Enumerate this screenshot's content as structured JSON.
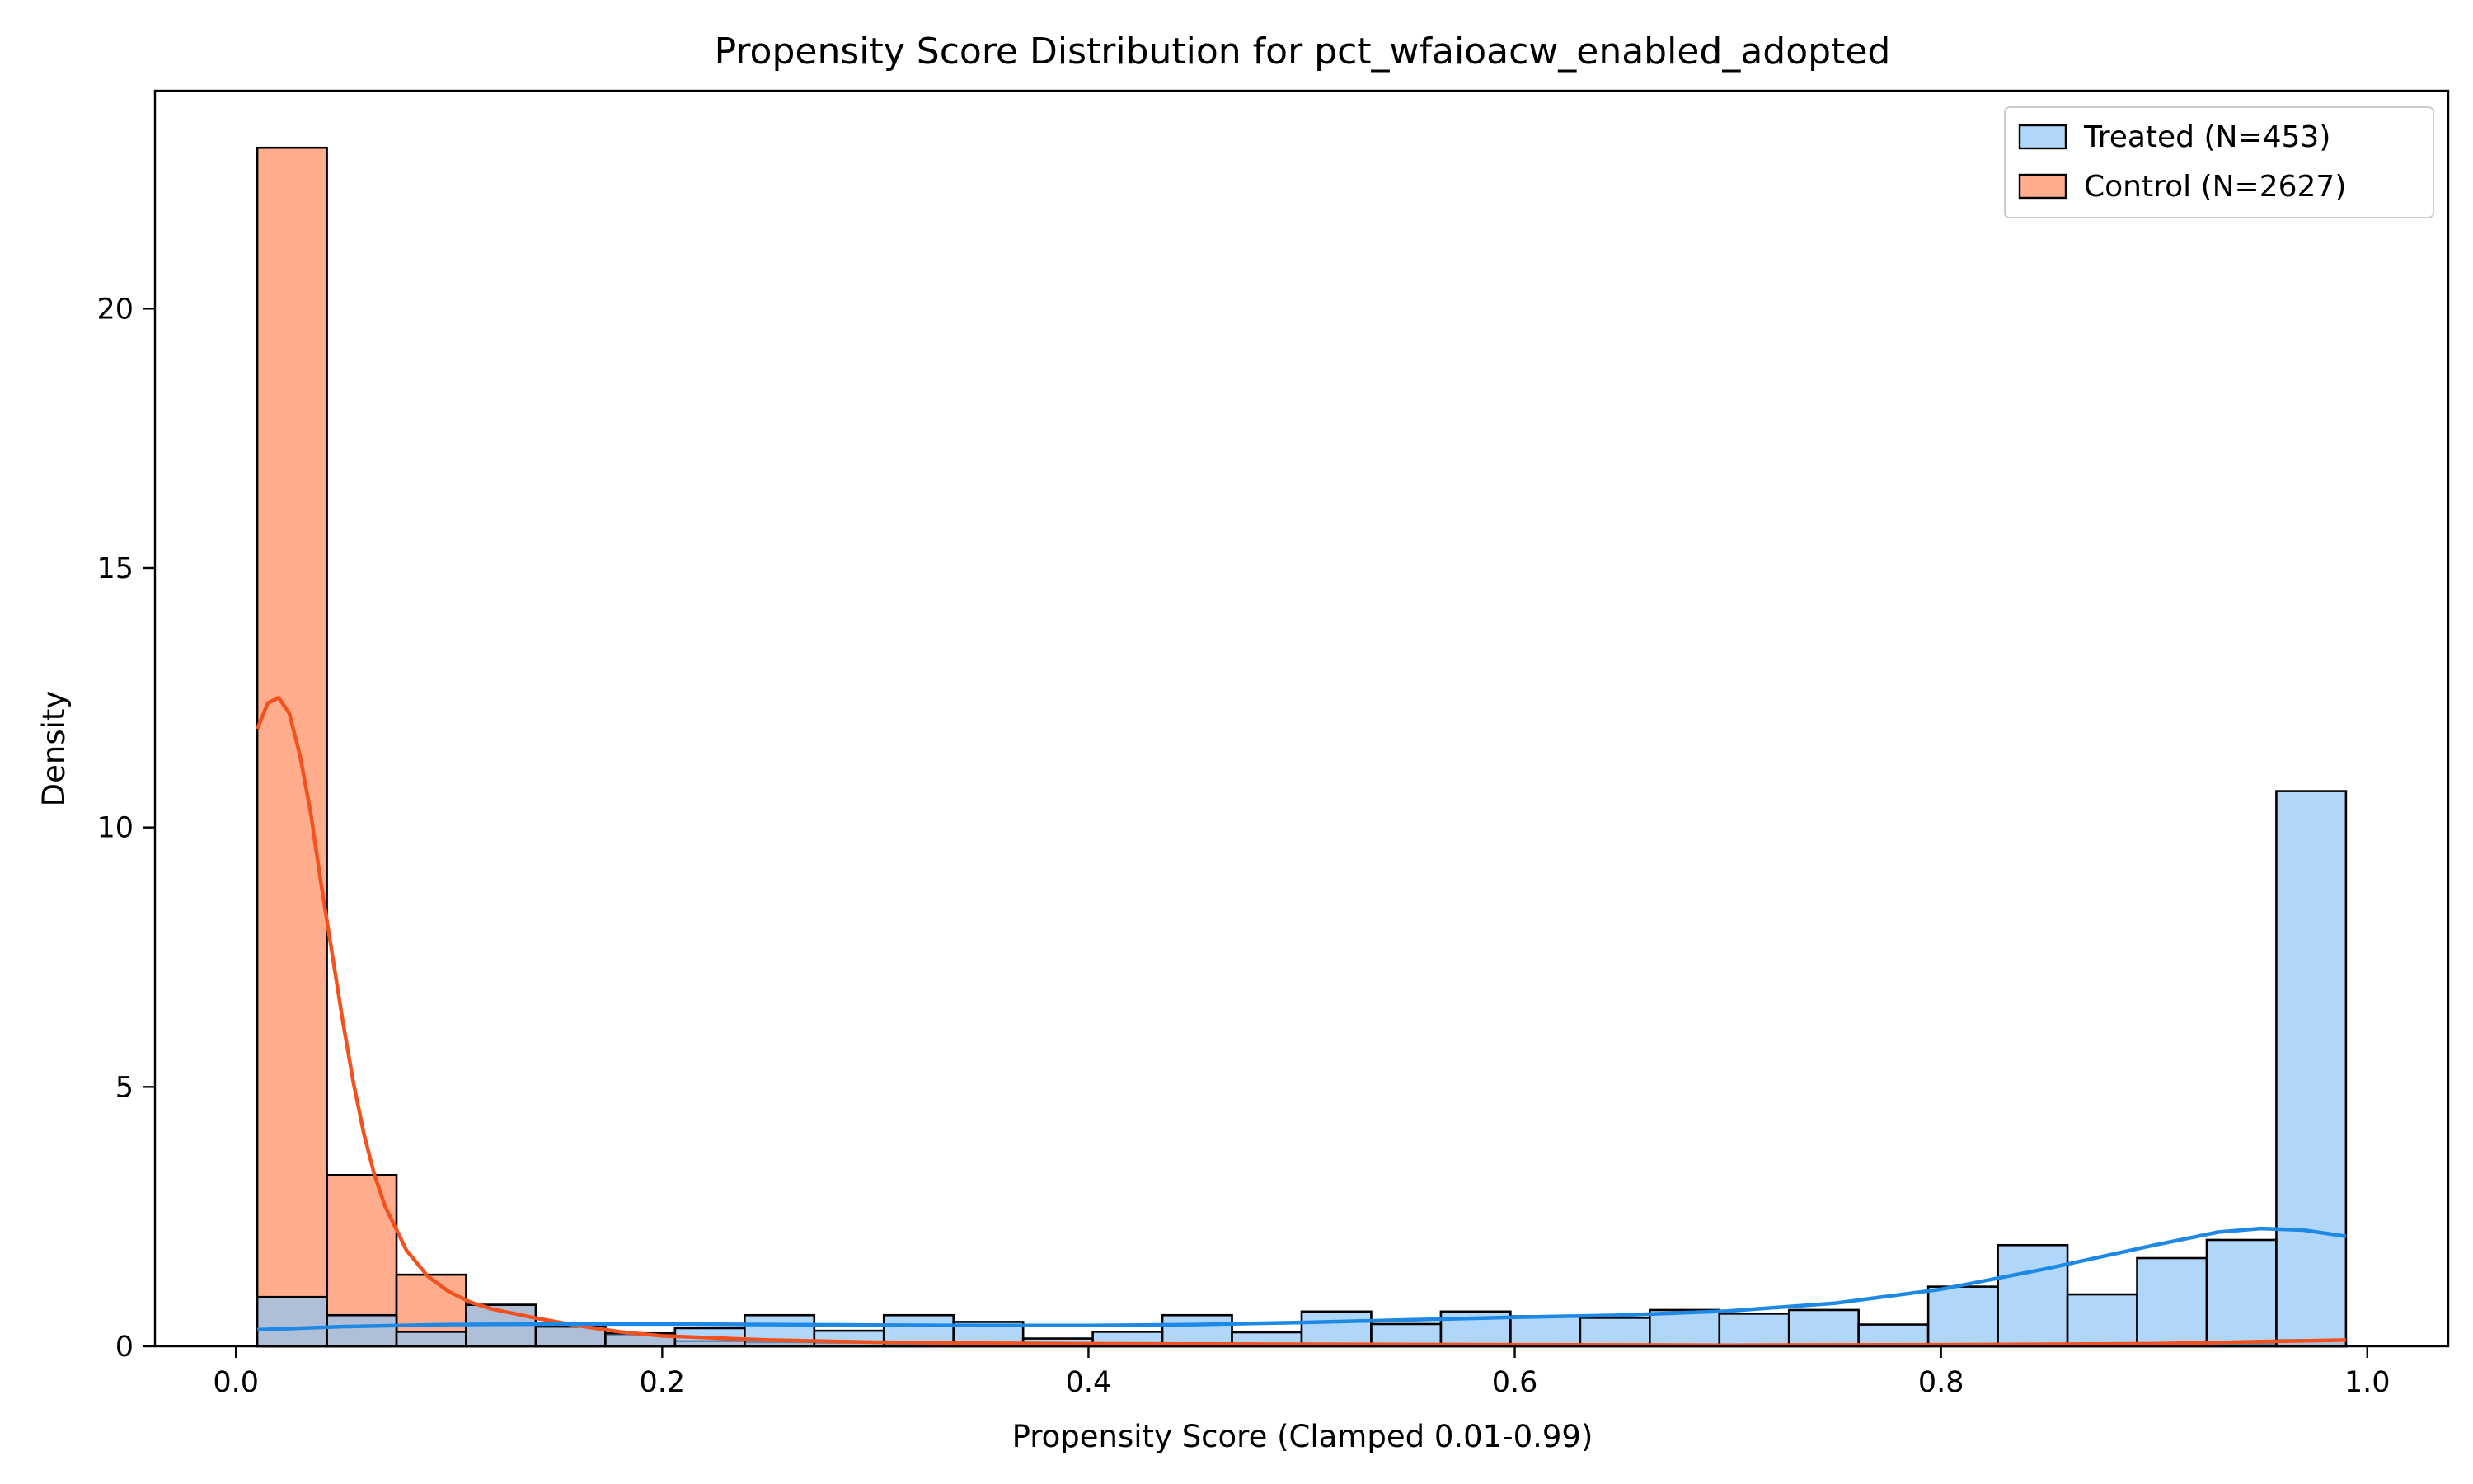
{
  "chart_data": {
    "type": "histogram",
    "title": "Propensity Score Distribution for pct_wfaioacw_enabled_adopted",
    "xlabel": "Propensity Score (Clamped 0.01-0.99)",
    "ylabel": "Density",
    "xlim": [
      -0.038,
      1.038
    ],
    "ylim": [
      0,
      24.2
    ],
    "x_ticks": [
      0.0,
      0.2,
      0.4,
      0.6,
      0.8,
      1.0
    ],
    "x_tick_labels": [
      "0.0",
      "0.2",
      "0.4",
      "0.6",
      "0.8",
      "1.0"
    ],
    "y_ticks": [
      0,
      5,
      10,
      15,
      20
    ],
    "y_tick_labels": [
      "0",
      "5",
      "10",
      "15",
      "20"
    ],
    "grid": false,
    "legend_position": "top-right",
    "bins": {
      "start": 0.01,
      "end": 0.99,
      "count": 30
    },
    "series": [
      {
        "name": "Control (N=2627)",
        "color": "#ff8a5c",
        "line_color": "#f4511e",
        "values": [
          23.1,
          3.3,
          1.38,
          0.8,
          0.4,
          0.22,
          0.1,
          0.08,
          0.07,
          0.05,
          0.04,
          0.04,
          0.04,
          0.03,
          0.03,
          0.03,
          0.02,
          0.02,
          0.02,
          0.02,
          0.01,
          0.01,
          0.01,
          0.01,
          0.0,
          0.01,
          0.02,
          0.03,
          0.05,
          0.12
        ],
        "kde": {
          "x": [
            0.01,
            0.015,
            0.02,
            0.025,
            0.03,
            0.035,
            0.04,
            0.045,
            0.05,
            0.055,
            0.06,
            0.065,
            0.07,
            0.08,
            0.09,
            0.1,
            0.11,
            0.12,
            0.14,
            0.16,
            0.18,
            0.2,
            0.25,
            0.3,
            0.35,
            0.4,
            0.5,
            0.6,
            0.7,
            0.8,
            0.9,
            0.95,
            0.99
          ],
          "y": [
            11.9,
            12.4,
            12.5,
            12.2,
            11.4,
            10.3,
            8.9,
            7.6,
            6.3,
            5.1,
            4.1,
            3.3,
            2.7,
            1.85,
            1.35,
            1.05,
            0.85,
            0.72,
            0.55,
            0.4,
            0.28,
            0.2,
            0.12,
            0.08,
            0.06,
            0.05,
            0.04,
            0.03,
            0.02,
            0.03,
            0.05,
            0.09,
            0.12
          ]
        }
      },
      {
        "name": "Treated (N=453)",
        "color": "#8ec6f8",
        "line_color": "#1e88e5",
        "values": [
          0.95,
          0.6,
          0.28,
          0.8,
          0.38,
          0.25,
          0.35,
          0.6,
          0.3,
          0.6,
          0.47,
          0.15,
          0.28,
          0.6,
          0.27,
          0.67,
          0.43,
          0.67,
          0.58,
          0.55,
          0.7,
          0.63,
          0.7,
          0.42,
          1.15,
          1.95,
          1.0,
          1.7,
          2.05,
          10.7
        ],
        "kde": {
          "x": [
            0.01,
            0.05,
            0.1,
            0.15,
            0.2,
            0.25,
            0.3,
            0.35,
            0.4,
            0.45,
            0.5,
            0.55,
            0.6,
            0.65,
            0.7,
            0.75,
            0.8,
            0.85,
            0.9,
            0.93,
            0.95,
            0.97,
            0.99
          ],
          "y": [
            0.32,
            0.38,
            0.42,
            0.43,
            0.43,
            0.42,
            0.41,
            0.4,
            0.4,
            0.42,
            0.46,
            0.51,
            0.56,
            0.6,
            0.68,
            0.83,
            1.1,
            1.5,
            1.95,
            2.2,
            2.27,
            2.24,
            2.12
          ]
        }
      }
    ]
  }
}
